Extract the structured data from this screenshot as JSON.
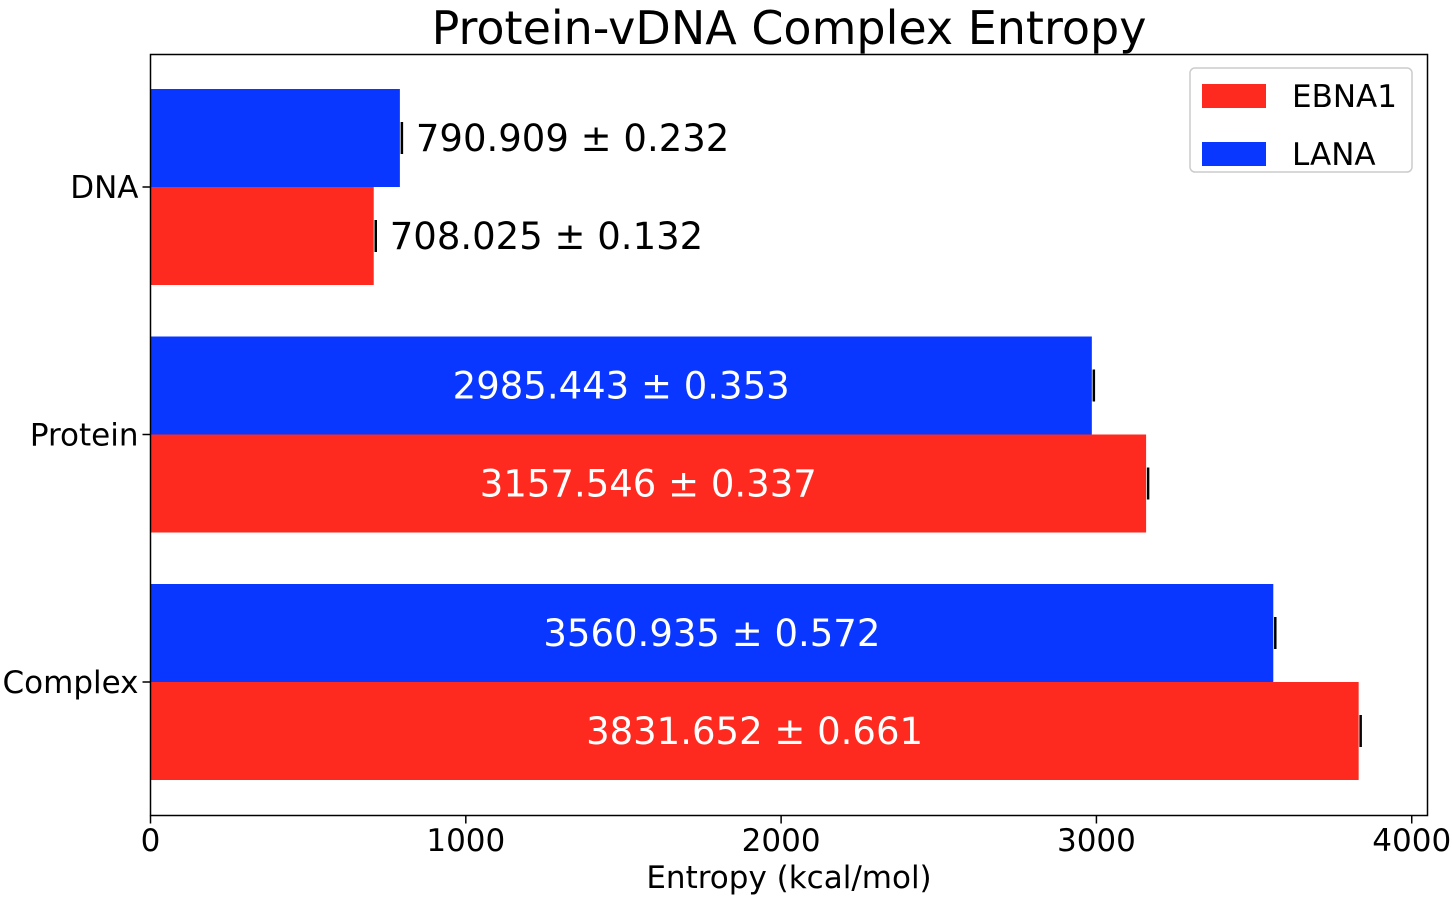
{
  "chart_data": {
    "type": "bar",
    "orientation": "horizontal",
    "title": "Protein-vDNA Complex Entropy",
    "xlabel": "Entropy (kcal/mol)",
    "ylabel": "",
    "xlim": [
      0,
      4050
    ],
    "xticks": [
      0,
      1000,
      2000,
      3000,
      4000
    ],
    "xtick_labels": [
      "0",
      "1000",
      "2000",
      "3000",
      "4000"
    ],
    "categories": [
      "DNA",
      "Protein",
      "Complex"
    ],
    "legend_position": "top-right",
    "series": [
      {
        "name": "EBNA1",
        "color": "#ff2a1f",
        "values": [
          708.025,
          3157.546,
          3831.652
        ],
        "errors": [
          0.132,
          0.337,
          0.661
        ],
        "labels": [
          "708.025 ± 0.132",
          "3157.546 ± 0.337",
          "3831.652 ± 0.661"
        ]
      },
      {
        "name": "LANA",
        "color": "#0a37ff",
        "values": [
          790.909,
          2985.443,
          3560.935
        ],
        "errors": [
          0.232,
          0.353,
          0.572
        ],
        "labels": [
          "790.909 ± 0.232",
          "2985.443 ± 0.353",
          "3560.935 ± 0.572"
        ]
      }
    ]
  }
}
